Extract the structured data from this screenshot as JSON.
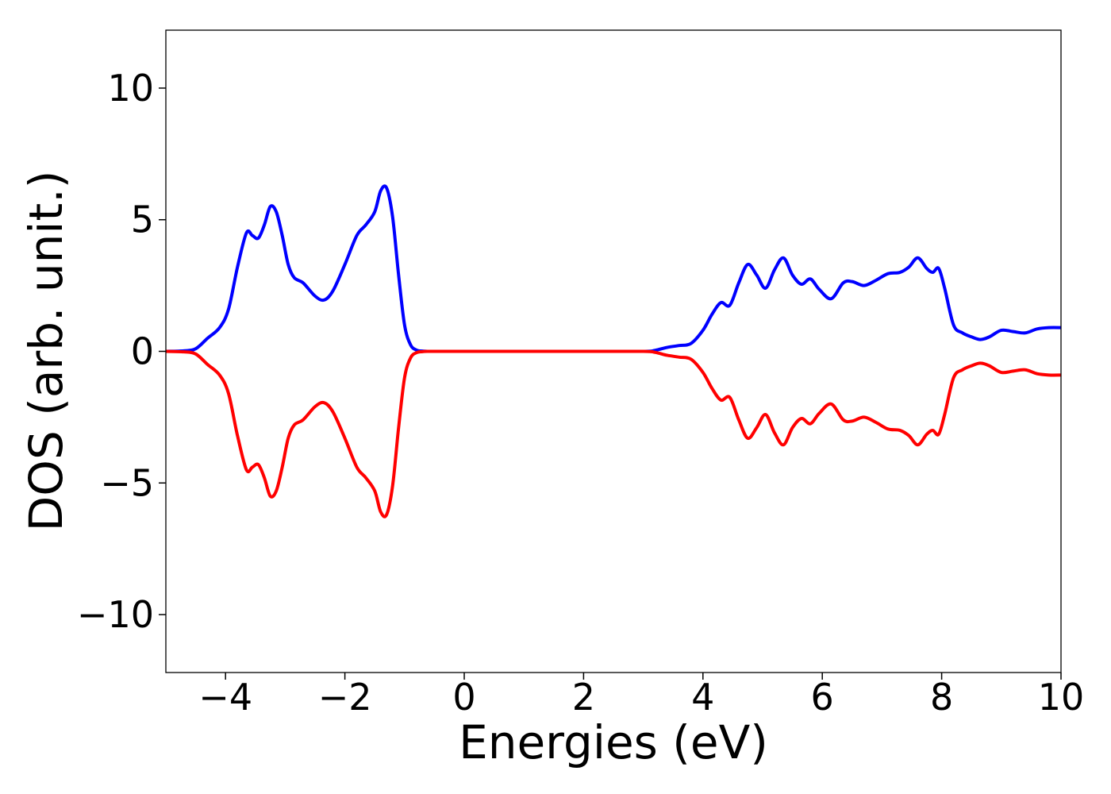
{
  "chart_data": {
    "type": "line",
    "title": "",
    "xlabel": "Energies (eV)",
    "ylabel": "DOS (arb. unit.)",
    "xlim": [
      -5,
      10
    ],
    "ylim": [
      -12.2,
      12.2
    ],
    "x_ticks": [
      -4,
      -2,
      0,
      2,
      4,
      6,
      8,
      10
    ],
    "x_tick_labels": [
      "−4",
      "−2",
      "0",
      "2",
      "4",
      "6",
      "8",
      "10"
    ],
    "y_ticks": [
      10,
      5,
      0,
      -5,
      -10
    ],
    "y_tick_labels": [
      "10",
      "5",
      "0",
      "−5",
      "−10"
    ],
    "grid": false,
    "legend": "none",
    "series": [
      {
        "color": "#0000ff",
        "x": [
          -5.0,
          -4.7,
          -4.5,
          -4.3,
          -4.1,
          -3.95,
          -3.8,
          -3.65,
          -3.55,
          -3.45,
          -3.35,
          -3.25,
          -3.15,
          -3.05,
          -2.95,
          -2.85,
          -2.7,
          -2.5,
          -2.35,
          -2.2,
          -2.0,
          -1.8,
          -1.65,
          -1.5,
          -1.4,
          -1.3,
          -1.2,
          -1.1,
          -1.0,
          -0.9,
          -0.8,
          -0.7,
          -0.6,
          -0.5,
          0.0,
          1.0,
          2.0,
          3.0,
          3.2,
          3.4,
          3.6,
          3.8,
          4.0,
          4.15,
          4.3,
          4.45,
          4.6,
          4.75,
          4.9,
          5.05,
          5.2,
          5.35,
          5.5,
          5.65,
          5.8,
          5.95,
          6.15,
          6.35,
          6.5,
          6.7,
          6.9,
          7.1,
          7.3,
          7.45,
          7.6,
          7.75,
          7.85,
          7.95,
          8.05,
          8.2,
          8.35,
          8.5,
          8.65,
          8.8,
          9.0,
          9.2,
          9.4,
          9.6,
          9.8,
          10.0
        ],
        "y": [
          0.0,
          0.02,
          0.1,
          0.5,
          0.9,
          1.6,
          3.2,
          4.5,
          4.4,
          4.3,
          4.8,
          5.5,
          5.3,
          4.4,
          3.3,
          2.8,
          2.6,
          2.1,
          1.95,
          2.3,
          3.3,
          4.4,
          4.8,
          5.3,
          6.1,
          6.2,
          5.1,
          2.9,
          1.0,
          0.25,
          0.05,
          0.01,
          0.0,
          0.0,
          0.0,
          0.0,
          0.0,
          0.0,
          0.04,
          0.15,
          0.22,
          0.3,
          0.8,
          1.4,
          1.85,
          1.75,
          2.6,
          3.3,
          2.9,
          2.4,
          3.1,
          3.55,
          2.9,
          2.55,
          2.75,
          2.35,
          2.0,
          2.6,
          2.65,
          2.5,
          2.7,
          2.95,
          3.0,
          3.2,
          3.55,
          3.15,
          3.0,
          3.15,
          2.4,
          1.0,
          0.7,
          0.55,
          0.45,
          0.55,
          0.8,
          0.75,
          0.7,
          0.85,
          0.9,
          0.9
        ]
      },
      {
        "color": "#ff0000",
        "x": [
          -5.0,
          -4.7,
          -4.5,
          -4.3,
          -4.1,
          -3.95,
          -3.8,
          -3.65,
          -3.55,
          -3.45,
          -3.35,
          -3.25,
          -3.15,
          -3.05,
          -2.95,
          -2.85,
          -2.7,
          -2.5,
          -2.35,
          -2.2,
          -2.0,
          -1.8,
          -1.65,
          -1.5,
          -1.4,
          -1.3,
          -1.2,
          -1.1,
          -1.0,
          -0.9,
          -0.8,
          -0.7,
          -0.6,
          -0.5,
          0.0,
          1.0,
          2.0,
          3.0,
          3.2,
          3.4,
          3.6,
          3.8,
          4.0,
          4.15,
          4.3,
          4.45,
          4.6,
          4.75,
          4.9,
          5.05,
          5.2,
          5.35,
          5.5,
          5.65,
          5.8,
          5.95,
          6.15,
          6.35,
          6.5,
          6.7,
          6.9,
          7.1,
          7.3,
          7.45,
          7.6,
          7.75,
          7.85,
          7.95,
          8.05,
          8.2,
          8.35,
          8.5,
          8.65,
          8.8,
          9.0,
          9.2,
          9.4,
          9.6,
          9.8,
          10.0
        ],
        "y": [
          0.0,
          -0.02,
          -0.1,
          -0.5,
          -0.9,
          -1.6,
          -3.2,
          -4.5,
          -4.4,
          -4.3,
          -4.8,
          -5.5,
          -5.3,
          -4.4,
          -3.3,
          -2.8,
          -2.6,
          -2.1,
          -1.95,
          -2.3,
          -3.3,
          -4.4,
          -4.8,
          -5.3,
          -6.1,
          -6.2,
          -5.1,
          -2.9,
          -1.0,
          -0.25,
          -0.05,
          -0.01,
          0.0,
          0.0,
          0.0,
          0.0,
          0.0,
          0.0,
          -0.04,
          -0.15,
          -0.22,
          -0.3,
          -0.8,
          -1.4,
          -1.85,
          -1.75,
          -2.6,
          -3.3,
          -2.9,
          -2.4,
          -3.1,
          -3.55,
          -2.9,
          -2.55,
          -2.75,
          -2.35,
          -2.0,
          -2.6,
          -2.65,
          -2.5,
          -2.7,
          -2.95,
          -3.0,
          -3.2,
          -3.55,
          -3.15,
          -3.0,
          -3.15,
          -2.4,
          -1.0,
          -0.7,
          -0.55,
          -0.45,
          -0.55,
          -0.8,
          -0.75,
          -0.7,
          -0.85,
          -0.9,
          -0.9
        ]
      }
    ]
  }
}
